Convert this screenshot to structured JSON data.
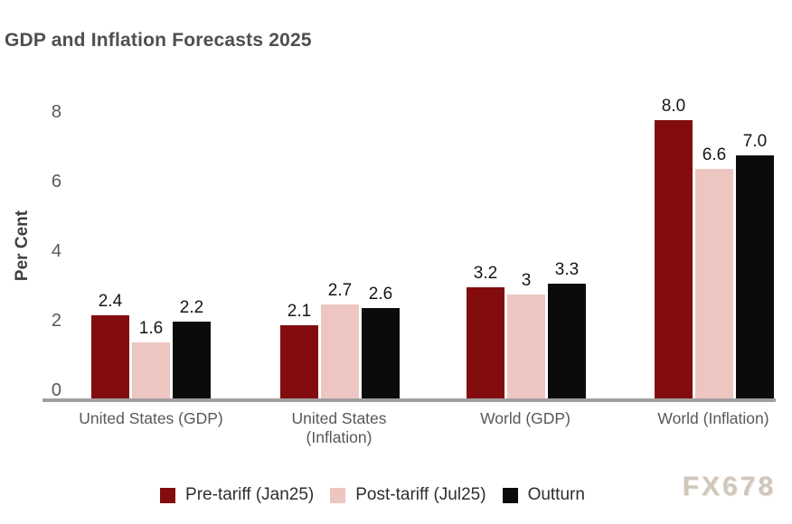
{
  "title": "GDP and Inflation Forecasts 2025",
  "watermark": "FX678",
  "chart_data": {
    "type": "bar",
    "title": "GDP and Inflation Forecasts 2025",
    "xlabel": "",
    "ylabel": "Per Cent",
    "ylim": [
      0,
      8
    ],
    "yticks": [
      0,
      2,
      4,
      6,
      8
    ],
    "grid": false,
    "legend_position": "bottom",
    "categories": [
      "United States (GDP)",
      "United States (Inflation)",
      "World (GDP)",
      "World (Inflation)"
    ],
    "series": [
      {
        "name": "Pre-tariff (Jan25)",
        "color": "#830c0e",
        "values": [
          2.4,
          2.1,
          3.2,
          8.0
        ],
        "value_labels": [
          "2.4",
          "2.1",
          "3.2",
          "8.0"
        ]
      },
      {
        "name": "Post-tariff (Jul25)",
        "color": "#eec6c1",
        "values": [
          1.6,
          2.7,
          3.0,
          6.6
        ],
        "value_labels": [
          "1.6",
          "2.7",
          "3",
          "6.6"
        ]
      },
      {
        "name": "Outturn",
        "color": "#0b0b0b",
        "values": [
          2.2,
          2.6,
          3.3,
          7.0
        ],
        "value_labels": [
          "2.2",
          "2.6",
          "3.3",
          "7.0"
        ]
      }
    ]
  },
  "colors": {
    "axis_line": "#a0a0a0",
    "title_text": "#4f4f4f",
    "tick_text": "#595959",
    "value_text": "#161616",
    "watermark_text": "#cdc5b9"
  }
}
